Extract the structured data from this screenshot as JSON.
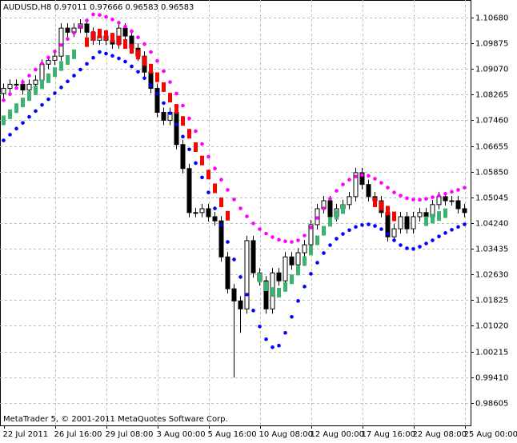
{
  "chart_data": {
    "type": "candlestick",
    "title": "AUDUSD,H8  0.97011 0.97666 0.96583 0.96583",
    "footer": "MetaTrader 5, © 2001-2011 MetaQuotes Software Corp.",
    "categories": [
      "22 Jul 2011",
      null,
      null,
      null,
      null,
      null,
      null,
      null,
      "26 Jul 16:00",
      null,
      null,
      null,
      null,
      null,
      null,
      null,
      "29 Jul 08:00",
      null,
      null,
      null,
      null,
      null,
      null,
      null,
      "3 Aug 00:00",
      null,
      null,
      null,
      null,
      null,
      null,
      null,
      "5 Aug 16:00",
      null,
      null,
      null,
      null,
      null,
      null,
      null,
      "10 Aug 08:00",
      null,
      null,
      null,
      null,
      null,
      null,
      null,
      "12 Aug 00:00",
      null,
      null,
      null,
      null,
      null,
      null,
      null,
      "17 Aug 16:00",
      null,
      null,
      null,
      null,
      null,
      null,
      null,
      "22 Aug 08:00",
      null,
      null,
      null,
      null,
      null,
      null,
      null,
      "25 Aug 00:00"
    ],
    "open": [
      1.083,
      1.0846,
      1.0859,
      1.0859,
      1.0841,
      1.0859,
      1.0872,
      1.0922,
      1.0934,
      1.0947,
      1.1035,
      1.1022,
      1.1035,
      1.1048,
      1.1022,
      1.0997,
      1.101,
      1.0997,
      1.0985,
      1.1035,
      1.101,
      1.0972,
      1.0947,
      1.0897,
      1.0846,
      1.0771,
      1.0746,
      1.0771,
      1.067,
      1.0595,
      1.0457,
      1.0457,
      1.0469,
      1.0444,
      1.0431,
      1.0318,
      1.0218,
      1.018,
      1.0155,
      1.0369,
      1.0268,
      1.0243,
      1.0155,
      1.0268,
      1.0243,
      1.0318,
      1.0293,
      1.0331,
      1.0356,
      1.0419,
      1.0469,
      1.0494,
      1.0444,
      1.0469,
      1.0482,
      1.0507,
      1.0582,
      1.0545,
      1.0507,
      1.0494,
      1.0457,
      1.0381,
      1.0406,
      1.0444,
      1.0406,
      1.0444,
      1.0457,
      1.0444,
      1.0482,
      1.0507,
      1.0494,
      1.0494,
      1.0469
    ],
    "high": [
      1.0861,
      1.0874,
      1.0874,
      1.0874,
      1.0874,
      1.0887,
      1.0937,
      1.0949,
      1.0962,
      1.105,
      1.105,
      1.105,
      1.1063,
      1.1063,
      1.1037,
      1.1025,
      1.1025,
      1.1012,
      1.105,
      1.105,
      1.1025,
      1.0987,
      1.0962,
      1.0912,
      1.0861,
      1.0786,
      1.0786,
      1.0786,
      1.0685,
      1.061,
      1.0472,
      1.0484,
      1.0484,
      1.0459,
      1.0446,
      1.0333,
      1.0233,
      1.0195,
      1.0384,
      1.0384,
      1.0283,
      1.0258,
      1.0283,
      1.0283,
      1.0333,
      1.0333,
      1.0346,
      1.0371,
      1.0434,
      1.0484,
      1.0509,
      1.0509,
      1.0484,
      1.0497,
      1.0522,
      1.0597,
      1.0597,
      1.056,
      1.0522,
      1.0509,
      1.0472,
      1.0421,
      1.0459,
      1.0459,
      1.0459,
      1.0472,
      1.0472,
      1.0497,
      1.0522,
      1.0522,
      1.0509,
      1.0509,
      1.0484
    ],
    "low": [
      1.0815,
      1.0831,
      1.0844,
      1.0826,
      1.0826,
      1.0844,
      1.0857,
      1.0907,
      1.0919,
      1.0932,
      1.1007,
      1.1007,
      1.102,
      1.1007,
      1.0982,
      1.0982,
      1.0982,
      1.097,
      1.097,
      1.0995,
      1.0957,
      1.0932,
      1.0882,
      1.0831,
      1.0756,
      1.0731,
      1.0731,
      1.0655,
      1.058,
      1.0442,
      1.0442,
      1.0442,
      1.0429,
      1.0416,
      1.0303,
      1.0203,
      0.994,
      1.008,
      1.014,
      1.0253,
      1.0228,
      1.014,
      1.014,
      1.0228,
      1.0228,
      1.0278,
      1.0278,
      1.0316,
      1.0341,
      1.0404,
      1.0454,
      1.0429,
      1.0429,
      1.0454,
      1.0467,
      1.0492,
      1.053,
      1.0492,
      1.0479,
      1.0442,
      1.0366,
      1.0366,
      1.0391,
      1.0391,
      1.0391,
      1.0429,
      1.0429,
      1.0429,
      1.0467,
      1.0479,
      1.0479,
      1.0454,
      1.0442
    ],
    "close": [
      1.0846,
      1.0859,
      1.0859,
      1.0841,
      1.0859,
      1.0872,
      1.0922,
      1.0934,
      1.0947,
      1.1035,
      1.1022,
      1.1035,
      1.1048,
      1.1022,
      1.0997,
      1.101,
      1.0997,
      1.0985,
      1.1035,
      1.101,
      1.0972,
      1.0947,
      1.0897,
      1.0846,
      1.0771,
      1.0746,
      1.0771,
      1.067,
      1.0595,
      1.0457,
      1.0457,
      1.0469,
      1.0444,
      1.0431,
      1.0318,
      1.0218,
      1.018,
      1.0155,
      1.0369,
      1.0268,
      1.0243,
      1.0155,
      1.0268,
      1.0243,
      1.0318,
      1.0293,
      1.0331,
      1.0356,
      1.0419,
      1.0469,
      1.0494,
      1.0444,
      1.0469,
      1.0482,
      1.0507,
      1.0582,
      1.0545,
      1.0507,
      1.0494,
      1.0457,
      1.0381,
      1.0406,
      1.0444,
      1.0406,
      1.0444,
      1.0457,
      1.0444,
      1.0482,
      1.0507,
      1.0494,
      1.0494,
      1.0469,
      1.0457
    ],
    "indicators": [
      {
        "style": "dots",
        "color": "#ff00ff",
        "values": [
          1.0809,
          1.0828,
          1.0847,
          1.0866,
          1.0886,
          1.0905,
          1.0924,
          1.0943,
          1.0962,
          1.0982,
          1.1001,
          1.102,
          1.104,
          1.1059,
          1.1078,
          1.1076,
          1.107,
          1.1062,
          1.1052,
          1.104,
          1.1025,
          1.1006,
          1.0985,
          1.096,
          1.0932,
          1.09,
          1.0866,
          1.083,
          1.0792,
          1.0752,
          1.0712,
          1.0672,
          1.0632,
          1.0595,
          1.056,
          1.0528,
          1.0498,
          1.047,
          1.0445,
          1.0423,
          1.0405,
          1.0391,
          1.038,
          1.0372,
          1.0367,
          1.0365,
          1.037,
          1.0385,
          1.041,
          1.044,
          1.047,
          1.05,
          1.0525,
          1.0545,
          1.056,
          1.057,
          1.0575,
          1.0572,
          1.0563,
          1.055,
          1.0535,
          1.052,
          1.051,
          1.0502,
          1.0498,
          1.0497,
          1.05,
          1.0505,
          1.051,
          1.0516,
          1.0522,
          1.0528,
          1.0535
        ]
      },
      {
        "style": "dots",
        "color": "#0000ff",
        "values": [
          1.0683,
          1.0701,
          1.072,
          1.0738,
          1.0757,
          1.0775,
          1.0794,
          1.0812,
          1.0831,
          1.0849,
          1.0868,
          1.0886,
          1.0905,
          1.0923,
          1.0942,
          1.096,
          1.0955,
          1.0948,
          1.094,
          1.093,
          1.0915,
          1.0898,
          1.0878,
          1.0855,
          1.083,
          1.08,
          1.0768,
          1.0733,
          1.0695,
          1.0655,
          1.0612,
          1.0567,
          1.052,
          1.047,
          1.0418,
          1.0365,
          1.031,
          1.0255,
          1.02,
          1.015,
          1.01,
          1.006,
          1.0035,
          1.004,
          1.008,
          1.013,
          1.018,
          1.0225,
          1.0265,
          1.03,
          1.033,
          1.0355,
          1.0375,
          1.039,
          1.0402,
          1.0412,
          1.0418,
          1.042,
          1.0415,
          1.0405,
          1.039,
          1.037,
          1.0355,
          1.0345,
          1.0343,
          1.035,
          1.036,
          1.037,
          1.0382,
          1.0393,
          1.0403,
          1.0412,
          1.042
        ]
      },
      {
        "style": "blocks",
        "color": "#3cb371",
        "values": [
          1.0746,
          1.0765,
          1.0784,
          1.0802,
          1.0822,
          1.084,
          1.0859,
          1.0878,
          1.0897,
          1.0916,
          1.0935,
          1.0953,
          null,
          null,
          null,
          null,
          null,
          null,
          null,
          null,
          null,
          null,
          null,
          null,
          null,
          null,
          null,
          null,
          null,
          null,
          null,
          null,
          null,
          null,
          null,
          null,
          null,
          null,
          null,
          null,
          1.0253,
          1.0226,
          1.0208,
          1.0206,
          1.0224,
          1.0248,
          1.0275,
          1.0305,
          1.0338,
          1.037,
          1.04,
          1.0428,
          1.045,
          1.0468,
          null,
          null,
          null,
          null,
          null,
          null,
          null,
          null,
          null,
          null,
          null,
          null,
          1.043,
          1.0438,
          1.0446,
          1.0455,
          null,
          null,
          null
        ]
      },
      {
        "style": "blocks",
        "color": "#ff0000",
        "values": [
          null,
          null,
          null,
          null,
          null,
          null,
          null,
          null,
          null,
          null,
          null,
          null,
          null,
          1.0991,
          1.101,
          1.1018,
          1.1013,
          1.1005,
          1.0996,
          1.0985,
          1.097,
          1.0952,
          1.0932,
          1.0908,
          1.0881,
          1.085,
          1.0817,
          1.0782,
          1.0744,
          1.0704,
          1.0662,
          1.062,
          1.0576,
          1.0533,
          1.0489,
          1.0447,
          null,
          null,
          null,
          null,
          null,
          null,
          null,
          null,
          null,
          null,
          null,
          null,
          null,
          null,
          null,
          null,
          null,
          null,
          null,
          null,
          null,
          null,
          1.0489,
          1.0478,
          1.0463,
          1.0445,
          null,
          null,
          null,
          null,
          null,
          null,
          null,
          null,
          null,
          null,
          null
        ]
      }
    ],
    "ylim": [
      0.979,
      1.1123
    ],
    "yticks": [
      {
        "value": 1.1068,
        "label": "1.10680"
      },
      1.09875,
      {
        "value": 1.0907,
        "label": "1.09070"
      },
      1.08265,
      {
        "value": 1.0746,
        "label": "1.07460"
      },
      1.06655,
      {
        "value": 1.0585,
        "label": "1.05850"
      },
      1.05045,
      {
        "value": 1.0424,
        "label": "1.04240"
      },
      1.03435,
      {
        "value": 1.0263,
        "label": "1.02630"
      },
      1.01825,
      {
        "value": 1.0102,
        "label": "1.01020"
      },
      1.00215,
      {
        "value": 0.9941,
        "label": "0.99410"
      },
      0.98605
    ],
    "grid": true
  }
}
